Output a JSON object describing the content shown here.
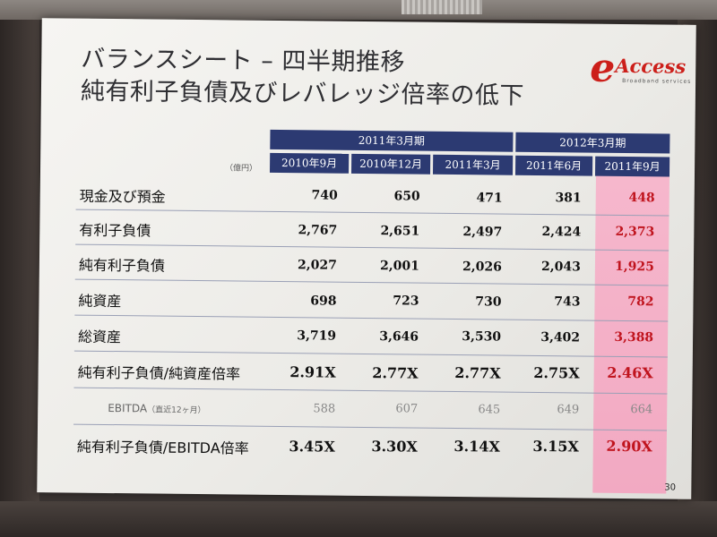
{
  "title_line1": "バランスシート – 四半期推移",
  "title_line2": "純有利子負債及びレバレッジ倍率の低下",
  "logo": {
    "mark": "e",
    "word": "Access",
    "tagline": "Broadband services"
  },
  "unit": "（億円）",
  "period_groups": [
    "2011年3月期",
    "2012年3月期"
  ],
  "columns": [
    "2010年9月",
    "2010年12月",
    "2011年3月",
    "2011年6月",
    "2011年9月"
  ],
  "rows": [
    {
      "label": "現金及び預金",
      "values": [
        "740",
        "650",
        "471",
        "381",
        "448"
      ]
    },
    {
      "label": "有利子負債",
      "values": [
        "2,767",
        "2,651",
        "2,497",
        "2,424",
        "2,373"
      ]
    },
    {
      "label": "純有利子負債",
      "values": [
        "2,027",
        "2,001",
        "2,026",
        "2,043",
        "1,925"
      ]
    },
    {
      "label": "純資産",
      "values": [
        "698",
        "723",
        "730",
        "743",
        "782"
      ]
    },
    {
      "label": "総資産",
      "values": [
        "3,719",
        "3,646",
        "3,530",
        "3,402",
        "3,388"
      ]
    },
    {
      "label": "純有利子負債/純資産倍率",
      "values": [
        "2.91X",
        "2.77X",
        "2.77X",
        "2.75X",
        "2.46X"
      ]
    },
    {
      "label": "EBITDA",
      "sublabel": "（直近12ヶ月）",
      "values": [
        "588",
        "607",
        "645",
        "649",
        "664"
      ]
    },
    {
      "label": "純有利子負債/EBITDA倍率",
      "values": [
        "3.45X",
        "3.30X",
        "3.14X",
        "3.15X",
        "2.90X"
      ]
    }
  ],
  "page_number": "30",
  "colors": {
    "header": "#2c3a72",
    "highlight": "#f4b3c8",
    "logo": "#cc1f1a"
  }
}
